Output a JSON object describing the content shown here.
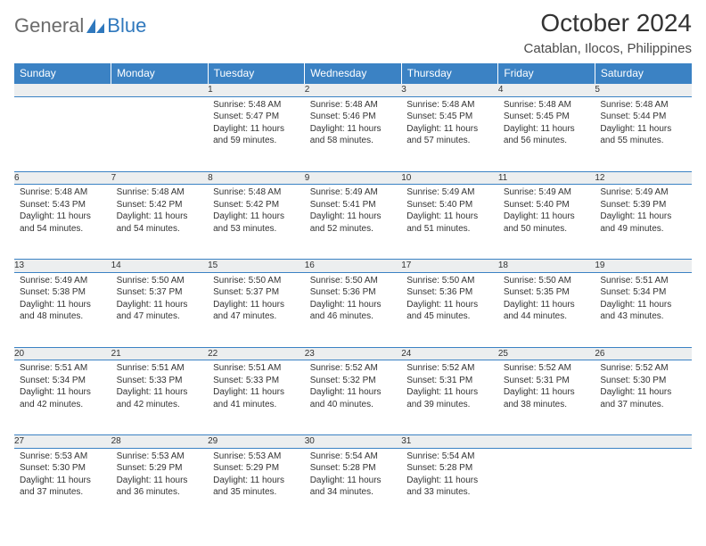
{
  "brand": {
    "general": "General",
    "blue": "Blue",
    "logo_color": "#2f78bd",
    "text_gray": "#6b6b6b"
  },
  "title": "October 2024",
  "location": "Catablan, Ilocos, Philippines",
  "header_bg": "#3b82c4",
  "daynum_bg": "#eceeef",
  "border_color": "#3b82c4",
  "dow": [
    "Sunday",
    "Monday",
    "Tuesday",
    "Wednesday",
    "Thursday",
    "Friday",
    "Saturday"
  ],
  "weeks": [
    [
      null,
      null,
      {
        "n": "1",
        "sr": "Sunrise: 5:48 AM",
        "ss": "Sunset: 5:47 PM",
        "dl1": "Daylight: 11 hours",
        "dl2": "and 59 minutes."
      },
      {
        "n": "2",
        "sr": "Sunrise: 5:48 AM",
        "ss": "Sunset: 5:46 PM",
        "dl1": "Daylight: 11 hours",
        "dl2": "and 58 minutes."
      },
      {
        "n": "3",
        "sr": "Sunrise: 5:48 AM",
        "ss": "Sunset: 5:45 PM",
        "dl1": "Daylight: 11 hours",
        "dl2": "and 57 minutes."
      },
      {
        "n": "4",
        "sr": "Sunrise: 5:48 AM",
        "ss": "Sunset: 5:45 PM",
        "dl1": "Daylight: 11 hours",
        "dl2": "and 56 minutes."
      },
      {
        "n": "5",
        "sr": "Sunrise: 5:48 AM",
        "ss": "Sunset: 5:44 PM",
        "dl1": "Daylight: 11 hours",
        "dl2": "and 55 minutes."
      }
    ],
    [
      {
        "n": "6",
        "sr": "Sunrise: 5:48 AM",
        "ss": "Sunset: 5:43 PM",
        "dl1": "Daylight: 11 hours",
        "dl2": "and 54 minutes."
      },
      {
        "n": "7",
        "sr": "Sunrise: 5:48 AM",
        "ss": "Sunset: 5:42 PM",
        "dl1": "Daylight: 11 hours",
        "dl2": "and 54 minutes."
      },
      {
        "n": "8",
        "sr": "Sunrise: 5:48 AM",
        "ss": "Sunset: 5:42 PM",
        "dl1": "Daylight: 11 hours",
        "dl2": "and 53 minutes."
      },
      {
        "n": "9",
        "sr": "Sunrise: 5:49 AM",
        "ss": "Sunset: 5:41 PM",
        "dl1": "Daylight: 11 hours",
        "dl2": "and 52 minutes."
      },
      {
        "n": "10",
        "sr": "Sunrise: 5:49 AM",
        "ss": "Sunset: 5:40 PM",
        "dl1": "Daylight: 11 hours",
        "dl2": "and 51 minutes."
      },
      {
        "n": "11",
        "sr": "Sunrise: 5:49 AM",
        "ss": "Sunset: 5:40 PM",
        "dl1": "Daylight: 11 hours",
        "dl2": "and 50 minutes."
      },
      {
        "n": "12",
        "sr": "Sunrise: 5:49 AM",
        "ss": "Sunset: 5:39 PM",
        "dl1": "Daylight: 11 hours",
        "dl2": "and 49 minutes."
      }
    ],
    [
      {
        "n": "13",
        "sr": "Sunrise: 5:49 AM",
        "ss": "Sunset: 5:38 PM",
        "dl1": "Daylight: 11 hours",
        "dl2": "and 48 minutes."
      },
      {
        "n": "14",
        "sr": "Sunrise: 5:50 AM",
        "ss": "Sunset: 5:37 PM",
        "dl1": "Daylight: 11 hours",
        "dl2": "and 47 minutes."
      },
      {
        "n": "15",
        "sr": "Sunrise: 5:50 AM",
        "ss": "Sunset: 5:37 PM",
        "dl1": "Daylight: 11 hours",
        "dl2": "and 47 minutes."
      },
      {
        "n": "16",
        "sr": "Sunrise: 5:50 AM",
        "ss": "Sunset: 5:36 PM",
        "dl1": "Daylight: 11 hours",
        "dl2": "and 46 minutes."
      },
      {
        "n": "17",
        "sr": "Sunrise: 5:50 AM",
        "ss": "Sunset: 5:36 PM",
        "dl1": "Daylight: 11 hours",
        "dl2": "and 45 minutes."
      },
      {
        "n": "18",
        "sr": "Sunrise: 5:50 AM",
        "ss": "Sunset: 5:35 PM",
        "dl1": "Daylight: 11 hours",
        "dl2": "and 44 minutes."
      },
      {
        "n": "19",
        "sr": "Sunrise: 5:51 AM",
        "ss": "Sunset: 5:34 PM",
        "dl1": "Daylight: 11 hours",
        "dl2": "and 43 minutes."
      }
    ],
    [
      {
        "n": "20",
        "sr": "Sunrise: 5:51 AM",
        "ss": "Sunset: 5:34 PM",
        "dl1": "Daylight: 11 hours",
        "dl2": "and 42 minutes."
      },
      {
        "n": "21",
        "sr": "Sunrise: 5:51 AM",
        "ss": "Sunset: 5:33 PM",
        "dl1": "Daylight: 11 hours",
        "dl2": "and 42 minutes."
      },
      {
        "n": "22",
        "sr": "Sunrise: 5:51 AM",
        "ss": "Sunset: 5:33 PM",
        "dl1": "Daylight: 11 hours",
        "dl2": "and 41 minutes."
      },
      {
        "n": "23",
        "sr": "Sunrise: 5:52 AM",
        "ss": "Sunset: 5:32 PM",
        "dl1": "Daylight: 11 hours",
        "dl2": "and 40 minutes."
      },
      {
        "n": "24",
        "sr": "Sunrise: 5:52 AM",
        "ss": "Sunset: 5:31 PM",
        "dl1": "Daylight: 11 hours",
        "dl2": "and 39 minutes."
      },
      {
        "n": "25",
        "sr": "Sunrise: 5:52 AM",
        "ss": "Sunset: 5:31 PM",
        "dl1": "Daylight: 11 hours",
        "dl2": "and 38 minutes."
      },
      {
        "n": "26",
        "sr": "Sunrise: 5:52 AM",
        "ss": "Sunset: 5:30 PM",
        "dl1": "Daylight: 11 hours",
        "dl2": "and 37 minutes."
      }
    ],
    [
      {
        "n": "27",
        "sr": "Sunrise: 5:53 AM",
        "ss": "Sunset: 5:30 PM",
        "dl1": "Daylight: 11 hours",
        "dl2": "and 37 minutes."
      },
      {
        "n": "28",
        "sr": "Sunrise: 5:53 AM",
        "ss": "Sunset: 5:29 PM",
        "dl1": "Daylight: 11 hours",
        "dl2": "and 36 minutes."
      },
      {
        "n": "29",
        "sr": "Sunrise: 5:53 AM",
        "ss": "Sunset: 5:29 PM",
        "dl1": "Daylight: 11 hours",
        "dl2": "and 35 minutes."
      },
      {
        "n": "30",
        "sr": "Sunrise: 5:54 AM",
        "ss": "Sunset: 5:28 PM",
        "dl1": "Daylight: 11 hours",
        "dl2": "and 34 minutes."
      },
      {
        "n": "31",
        "sr": "Sunrise: 5:54 AM",
        "ss": "Sunset: 5:28 PM",
        "dl1": "Daylight: 11 hours",
        "dl2": "and 33 minutes."
      },
      null,
      null
    ]
  ]
}
